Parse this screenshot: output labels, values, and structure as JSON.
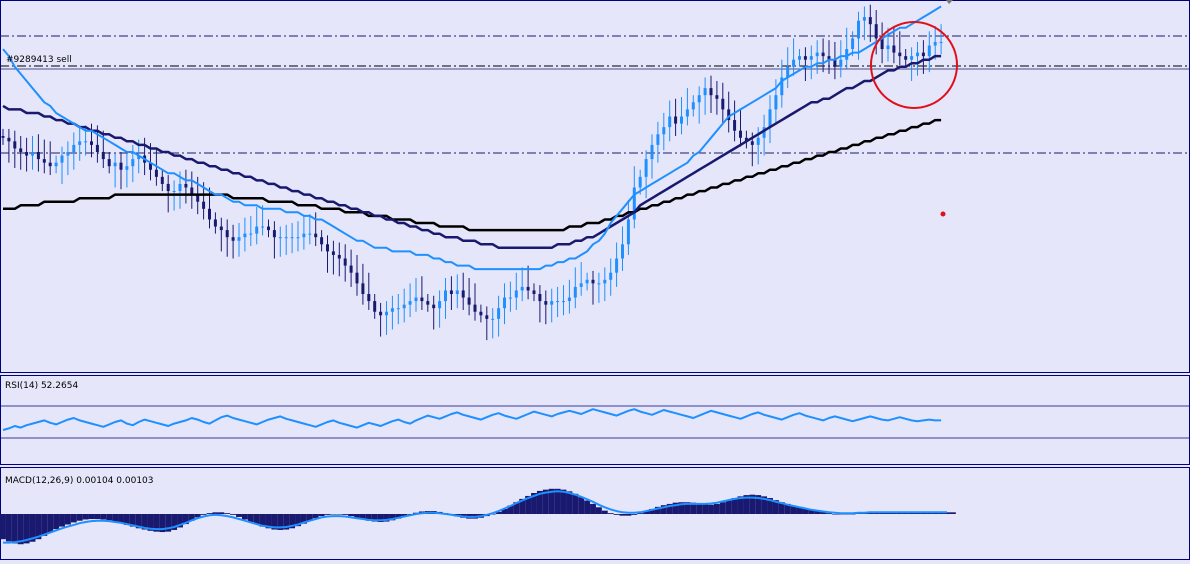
{
  "colors": {
    "background": "#e6e6fa",
    "bull_candle": "#1e90ff",
    "bear_candle": "#191970",
    "ma_fast": "#1e90ff",
    "ma_mid": "#191970",
    "ma_slow": "#000000",
    "rsi_line": "#1e90ff",
    "macd_hist": "#191970",
    "macd_signal": "#1e90ff",
    "highlight_circle": "#e0101a",
    "marker_dot": "#e0101a",
    "order_line": "#000000",
    "level_line": "#191970"
  },
  "price_panel": {
    "order_label": "#9289413 sell"
  },
  "rsi_panel": {
    "label": "RSI(14) 52.2654"
  },
  "macd_panel": {
    "label": "MACD(12,26,9) 0.00104 0.00103"
  },
  "chart_data": [
    {
      "type": "candlestick",
      "title": "",
      "xlabel": "",
      "ylabel": "",
      "ylim": [
        0,
        100
      ],
      "bars": 160,
      "close": [
        64,
        63,
        61,
        60,
        59,
        60,
        58,
        57,
        56,
        57,
        59,
        60,
        62,
        63,
        63,
        62,
        60,
        58,
        56,
        57,
        55,
        56,
        58,
        59,
        57,
        55,
        53,
        51,
        49,
        49,
        51,
        50,
        48,
        46,
        44,
        41,
        39,
        38,
        36,
        35,
        36,
        37,
        37,
        39,
        39,
        38,
        36,
        36,
        36,
        36,
        36,
        37,
        37,
        36,
        34,
        32,
        31,
        30,
        28,
        26,
        23,
        20,
        18,
        15,
        14,
        15,
        16,
        16,
        17,
        18,
        19,
        18,
        17,
        16,
        18,
        21,
        20,
        21,
        19,
        17,
        15,
        14,
        13,
        13,
        16,
        19,
        19,
        21,
        22,
        21,
        20,
        18,
        17,
        18,
        18,
        18,
        19,
        22,
        23,
        24,
        23,
        23,
        24,
        26,
        30,
        34,
        41,
        50,
        53,
        58,
        62,
        65,
        67,
        70,
        68,
        70,
        72,
        74,
        76,
        78,
        76,
        75,
        72,
        69,
        66,
        64,
        63,
        62,
        64,
        67,
        72,
        76,
        81,
        84,
        86,
        87,
        86,
        87,
        88,
        87,
        86,
        84,
        86,
        89,
        92,
        97,
        98,
        96,
        92,
        89,
        90,
        88,
        87,
        86,
        87,
        88,
        87,
        90,
        91,
        91
      ],
      "ma_fast": [
        89,
        87,
        84,
        82,
        80,
        78,
        76,
        74,
        73,
        71,
        70,
        69,
        68,
        67,
        66,
        66,
        65,
        64,
        63,
        62,
        61,
        60,
        60,
        59,
        58,
        57,
        56,
        55,
        54,
        54,
        53,
        52,
        52,
        51,
        50,
        49,
        48,
        48,
        47,
        46,
        46,
        45,
        45,
        45,
        44,
        44,
        44,
        44,
        43,
        43,
        43,
        42,
        42,
        41,
        41,
        40,
        39,
        38,
        37,
        36,
        35,
        35,
        34,
        33,
        33,
        33,
        32,
        32,
        32,
        32,
        31,
        31,
        31,
        30,
        30,
        29,
        29,
        28,
        28,
        28,
        27,
        27,
        27,
        27,
        27,
        27,
        27,
        27,
        27,
        27,
        27,
        27,
        28,
        28,
        29,
        29,
        30,
        30,
        31,
        32,
        34,
        35,
        37,
        40,
        42,
        44,
        46,
        48,
        49,
        50,
        51,
        52,
        53,
        54,
        55,
        56,
        57,
        59,
        60,
        62,
        64,
        66,
        68,
        70,
        71,
        72,
        73,
        74,
        75,
        76,
        77,
        78,
        80,
        81,
        82,
        83,
        84,
        84,
        85,
        85,
        86,
        86,
        87,
        87,
        88,
        88,
        89,
        90,
        91,
        92,
        93,
        94,
        95,
        95,
        96,
        97,
        98,
        99,
        100,
        101
      ],
      "ma_mid": [
        73,
        72,
        72,
        72,
        71,
        71,
        71,
        70,
        70,
        69,
        69,
        68,
        68,
        67,
        67,
        66,
        66,
        65,
        65,
        64,
        64,
        63,
        63,
        62,
        62,
        61,
        61,
        60,
        60,
        59,
        59,
        58,
        58,
        57,
        57,
        56,
        56,
        55,
        55,
        54,
        54,
        53,
        53,
        52,
        52,
        51,
        51,
        50,
        50,
        49,
        49,
        48,
        48,
        47,
        47,
        46,
        46,
        45,
        45,
        44,
        44,
        43,
        43,
        42,
        42,
        41,
        41,
        40,
        40,
        39,
        39,
        38,
        38,
        37,
        37,
        36,
        36,
        36,
        35,
        35,
        35,
        34,
        34,
        34,
        33,
        33,
        33,
        33,
        33,
        33,
        33,
        33,
        33,
        33,
        34,
        34,
        34,
        35,
        35,
        36,
        36,
        37,
        38,
        39,
        40,
        41,
        42,
        43,
        45,
        46,
        47,
        48,
        49,
        50,
        51,
        52,
        53,
        54,
        55,
        56,
        57,
        58,
        59,
        60,
        61,
        62,
        63,
        64,
        65,
        66,
        67,
        68,
        69,
        70,
        71,
        72,
        73,
        74,
        74,
        75,
        75,
        76,
        77,
        78,
        78,
        79,
        80,
        80,
        81,
        82,
        83,
        83,
        84,
        84,
        85,
        85,
        86,
        86,
        87,
        87
      ],
      "ma_slow": [
        44,
        44,
        44,
        45,
        45,
        45,
        45,
        46,
        46,
        46,
        46,
        46,
        46,
        47,
        47,
        47,
        47,
        47,
        47,
        48,
        48,
        48,
        48,
        48,
        48,
        48,
        48,
        48,
        48,
        48,
        48,
        48,
        48,
        48,
        48,
        48,
        48,
        48,
        48,
        47,
        47,
        47,
        47,
        47,
        47,
        46,
        46,
        46,
        46,
        46,
        45,
        45,
        45,
        45,
        44,
        44,
        44,
        44,
        43,
        43,
        43,
        43,
        42,
        42,
        42,
        42,
        41,
        41,
        41,
        41,
        40,
        40,
        40,
        40,
        39,
        39,
        39,
        39,
        39,
        38,
        38,
        38,
        38,
        38,
        38,
        38,
        38,
        38,
        38,
        38,
        38,
        38,
        38,
        38,
        38,
        38,
        39,
        39,
        39,
        40,
        40,
        40,
        41,
        41,
        42,
        42,
        43,
        43,
        44,
        44,
        45,
        45,
        46,
        46,
        47,
        47,
        48,
        48,
        49,
        49,
        50,
        50,
        51,
        51,
        52,
        52,
        53,
        53,
        54,
        54,
        55,
        55,
        56,
        56,
        57,
        57,
        58,
        58,
        59,
        59,
        60,
        60,
        61,
        61,
        62,
        62,
        63,
        63,
        64,
        64,
        65,
        65,
        66,
        66,
        67,
        67,
        68,
        68,
        69,
        69
      ]
    },
    {
      "type": "line",
      "title": "RSI(14) 52.2654",
      "ylim": [
        0,
        100
      ],
      "values": [
        40,
        42,
        45,
        43,
        46,
        48,
        50,
        52,
        49,
        47,
        50,
        53,
        55,
        52,
        50,
        48,
        46,
        44,
        47,
        50,
        52,
        48,
        46,
        50,
        53,
        51,
        49,
        47,
        45,
        48,
        50,
        52,
        55,
        53,
        50,
        48,
        52,
        56,
        58,
        55,
        53,
        51,
        49,
        47,
        50,
        53,
        55,
        57,
        54,
        52,
        50,
        48,
        46,
        44,
        47,
        50,
        52,
        49,
        47,
        45,
        43,
        46,
        49,
        47,
        45,
        48,
        51,
        53,
        50,
        48,
        52,
        55,
        58,
        56,
        54,
        57,
        60,
        62,
        59,
        57,
        55,
        53,
        56,
        59,
        61,
        58,
        56,
        54,
        57,
        60,
        63,
        61,
        59,
        57,
        60,
        62,
        64,
        62,
        60,
        63,
        66,
        64,
        62,
        60,
        58,
        61,
        64,
        66,
        63,
        61,
        59,
        62,
        65,
        63,
        61,
        59,
        57,
        55,
        58,
        61,
        64,
        62,
        60,
        58,
        56,
        54,
        57,
        60,
        62,
        59,
        57,
        55,
        53,
        56,
        59,
        61,
        58,
        56,
        54,
        52,
        55,
        57,
        55,
        53,
        51,
        53,
        55,
        57,
        55,
        53,
        52,
        54,
        56,
        54,
        52,
        51,
        52,
        53,
        52,
        52
      ]
    },
    {
      "type": "bar",
      "title": "MACD(12,26,9) 0.00104 0.00103",
      "ylim": [
        -1,
        1
      ],
      "histogram": [
        -0.6,
        -0.65,
        -0.7,
        -0.72,
        -0.7,
        -0.66,
        -0.6,
        -0.52,
        -0.44,
        -0.36,
        -0.3,
        -0.25,
        -0.2,
        -0.16,
        -0.13,
        -0.12,
        -0.12,
        -0.13,
        -0.15,
        -0.18,
        -0.22,
        -0.26,
        -0.3,
        -0.34,
        -0.37,
        -0.4,
        -0.42,
        -0.43,
        -0.42,
        -0.38,
        -0.32,
        -0.24,
        -0.16,
        -0.08,
        -0.02,
        0.02,
        0.04,
        0.04,
        0.02,
        -0.02,
        -0.07,
        -0.13,
        -0.19,
        -0.25,
        -0.3,
        -0.34,
        -0.37,
        -0.38,
        -0.37,
        -0.34,
        -0.29,
        -0.23,
        -0.16,
        -0.1,
        -0.05,
        -0.02,
        0,
        0,
        -0.02,
        -0.05,
        -0.09,
        -0.13,
        -0.16,
        -0.18,
        -0.19,
        -0.18,
        -0.15,
        -0.11,
        -0.06,
        -0.01,
        0.03,
        0.06,
        0.07,
        0.07,
        0.05,
        0.02,
        -0.02,
        -0.06,
        -0.09,
        -0.11,
        -0.11,
        -0.09,
        -0.05,
        0,
        0.05,
        0.12,
        0.2,
        0.28,
        0.36,
        0.43,
        0.5,
        0.55,
        0.58,
        0.6,
        0.6,
        0.58,
        0.54,
        0.48,
        0.4,
        0.32,
        0.24,
        0.16,
        0.08,
        0.02,
        -0.02,
        -0.04,
        -0.04,
        -0.02,
        0.02,
        0.07,
        0.12,
        0.17,
        0.21,
        0.24,
        0.27,
        0.28,
        0.28,
        0.27,
        0.25,
        0.23,
        0.22,
        0.24,
        0.28,
        0.33,
        0.38,
        0.42,
        0.45,
        0.46,
        0.45,
        0.42,
        0.38,
        0.33,
        0.28,
        0.24,
        0.2,
        0.17,
        0.14,
        0.11,
        0.08,
        0.05,
        0.02,
        0,
        -0.01,
        -0.01,
        0,
        0.02,
        0.03,
        0.04,
        0.05,
        0.05,
        0.05,
        0.04,
        0.04,
        0.04,
        0.04,
        0.04,
        0.04,
        0.04,
        0.04,
        0.04,
        0.04,
        0.04
      ],
      "signal": [
        -0.68,
        -0.68,
        -0.67,
        -0.65,
        -0.62,
        -0.58,
        -0.54,
        -0.49,
        -0.44,
        -0.39,
        -0.34,
        -0.3,
        -0.26,
        -0.22,
        -0.19,
        -0.17,
        -0.16,
        -0.16,
        -0.17,
        -0.19,
        -0.21,
        -0.24,
        -0.27,
        -0.3,
        -0.33,
        -0.35,
        -0.36,
        -0.36,
        -0.34,
        -0.31,
        -0.26,
        -0.21,
        -0.15,
        -0.1,
        -0.06,
        -0.03,
        -0.02,
        -0.03,
        -0.05,
        -0.08,
        -0.12,
        -0.16,
        -0.2,
        -0.24,
        -0.28,
        -0.3,
        -0.32,
        -0.32,
        -0.31,
        -0.28,
        -0.25,
        -0.2,
        -0.16,
        -0.12,
        -0.08,
        -0.06,
        -0.05,
        -0.05,
        -0.06,
        -0.08,
        -0.1,
        -0.12,
        -0.14,
        -0.15,
        -0.15,
        -0.14,
        -0.12,
        -0.09,
        -0.06,
        -0.03,
        0,
        0.02,
        0.03,
        0.03,
        0.02,
        0,
        -0.02,
        -0.04,
        -0.06,
        -0.07,
        -0.07,
        -0.05,
        -0.02,
        0.02,
        0.07,
        0.13,
        0.19,
        0.26,
        0.32,
        0.38,
        0.43,
        0.48,
        0.51,
        0.53,
        0.54,
        0.53,
        0.5,
        0.46,
        0.41,
        0.35,
        0.29,
        0.22,
        0.16,
        0.11,
        0.07,
        0.04,
        0.03,
        0.03,
        0.04,
        0.07,
        0.1,
        0.13,
        0.16,
        0.19,
        0.21,
        0.23,
        0.24,
        0.24,
        0.24,
        0.24,
        0.25,
        0.27,
        0.3,
        0.33,
        0.36,
        0.38,
        0.39,
        0.39,
        0.38,
        0.36,
        0.33,
        0.29,
        0.26,
        0.22,
        0.19,
        0.16,
        0.13,
        0.1,
        0.08,
        0.06,
        0.04,
        0.03,
        0.02,
        0.02,
        0.02,
        0.03,
        0.03,
        0.04,
        0.04,
        0.04,
        0.04,
        0.04,
        0.04,
        0.04,
        0.04,
        0.04,
        0.04,
        0.04,
        0.04,
        0.04,
        0.04
      ]
    }
  ]
}
